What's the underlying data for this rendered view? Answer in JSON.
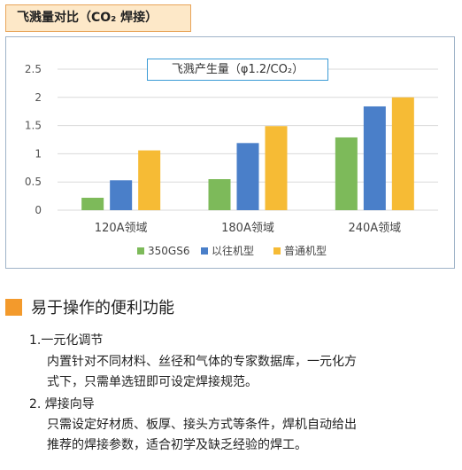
{
  "header": {
    "title": "飞溅量对比（CO₂ 焊接）"
  },
  "chart_data": {
    "type": "bar",
    "title": "飞溅产生量（φ1.2/CO₂）",
    "categories": [
      "120A领域",
      "180A领域",
      "240A领域"
    ],
    "series": [
      {
        "name": "350GS6",
        "color": "#7dba5a",
        "values": [
          0.22,
          0.55,
          1.29
        ]
      },
      {
        "name": "以往机型",
        "color": "#4a7fc9",
        "values": [
          0.53,
          1.19,
          1.84
        ]
      },
      {
        "name": "普通机型",
        "color": "#f6bb35",
        "values": [
          1.06,
          1.49,
          2.0
        ]
      }
    ],
    "yticks": [
      "0",
      "0.5",
      "1",
      "1.5",
      "2",
      "2.5"
    ],
    "ylim": [
      0,
      2.5
    ],
    "grid": true,
    "legend": "bottom"
  },
  "section": {
    "title": "易于操作的便利功能",
    "items": [
      {
        "title": "1.一元化调节",
        "lines": [
          "内置针对不同材料、丝径和气体的专家数据库，一元化方",
          "式下，只需单选钮即可设定焊接规范。"
        ]
      },
      {
        "title": "2. 焊接向导",
        "lines": [
          "只需设定好材质、板厚、接头方式等条件，焊机自动给出",
          "推荐的焊接参数，适合初学及缺乏经验的焊工。"
        ]
      }
    ]
  }
}
